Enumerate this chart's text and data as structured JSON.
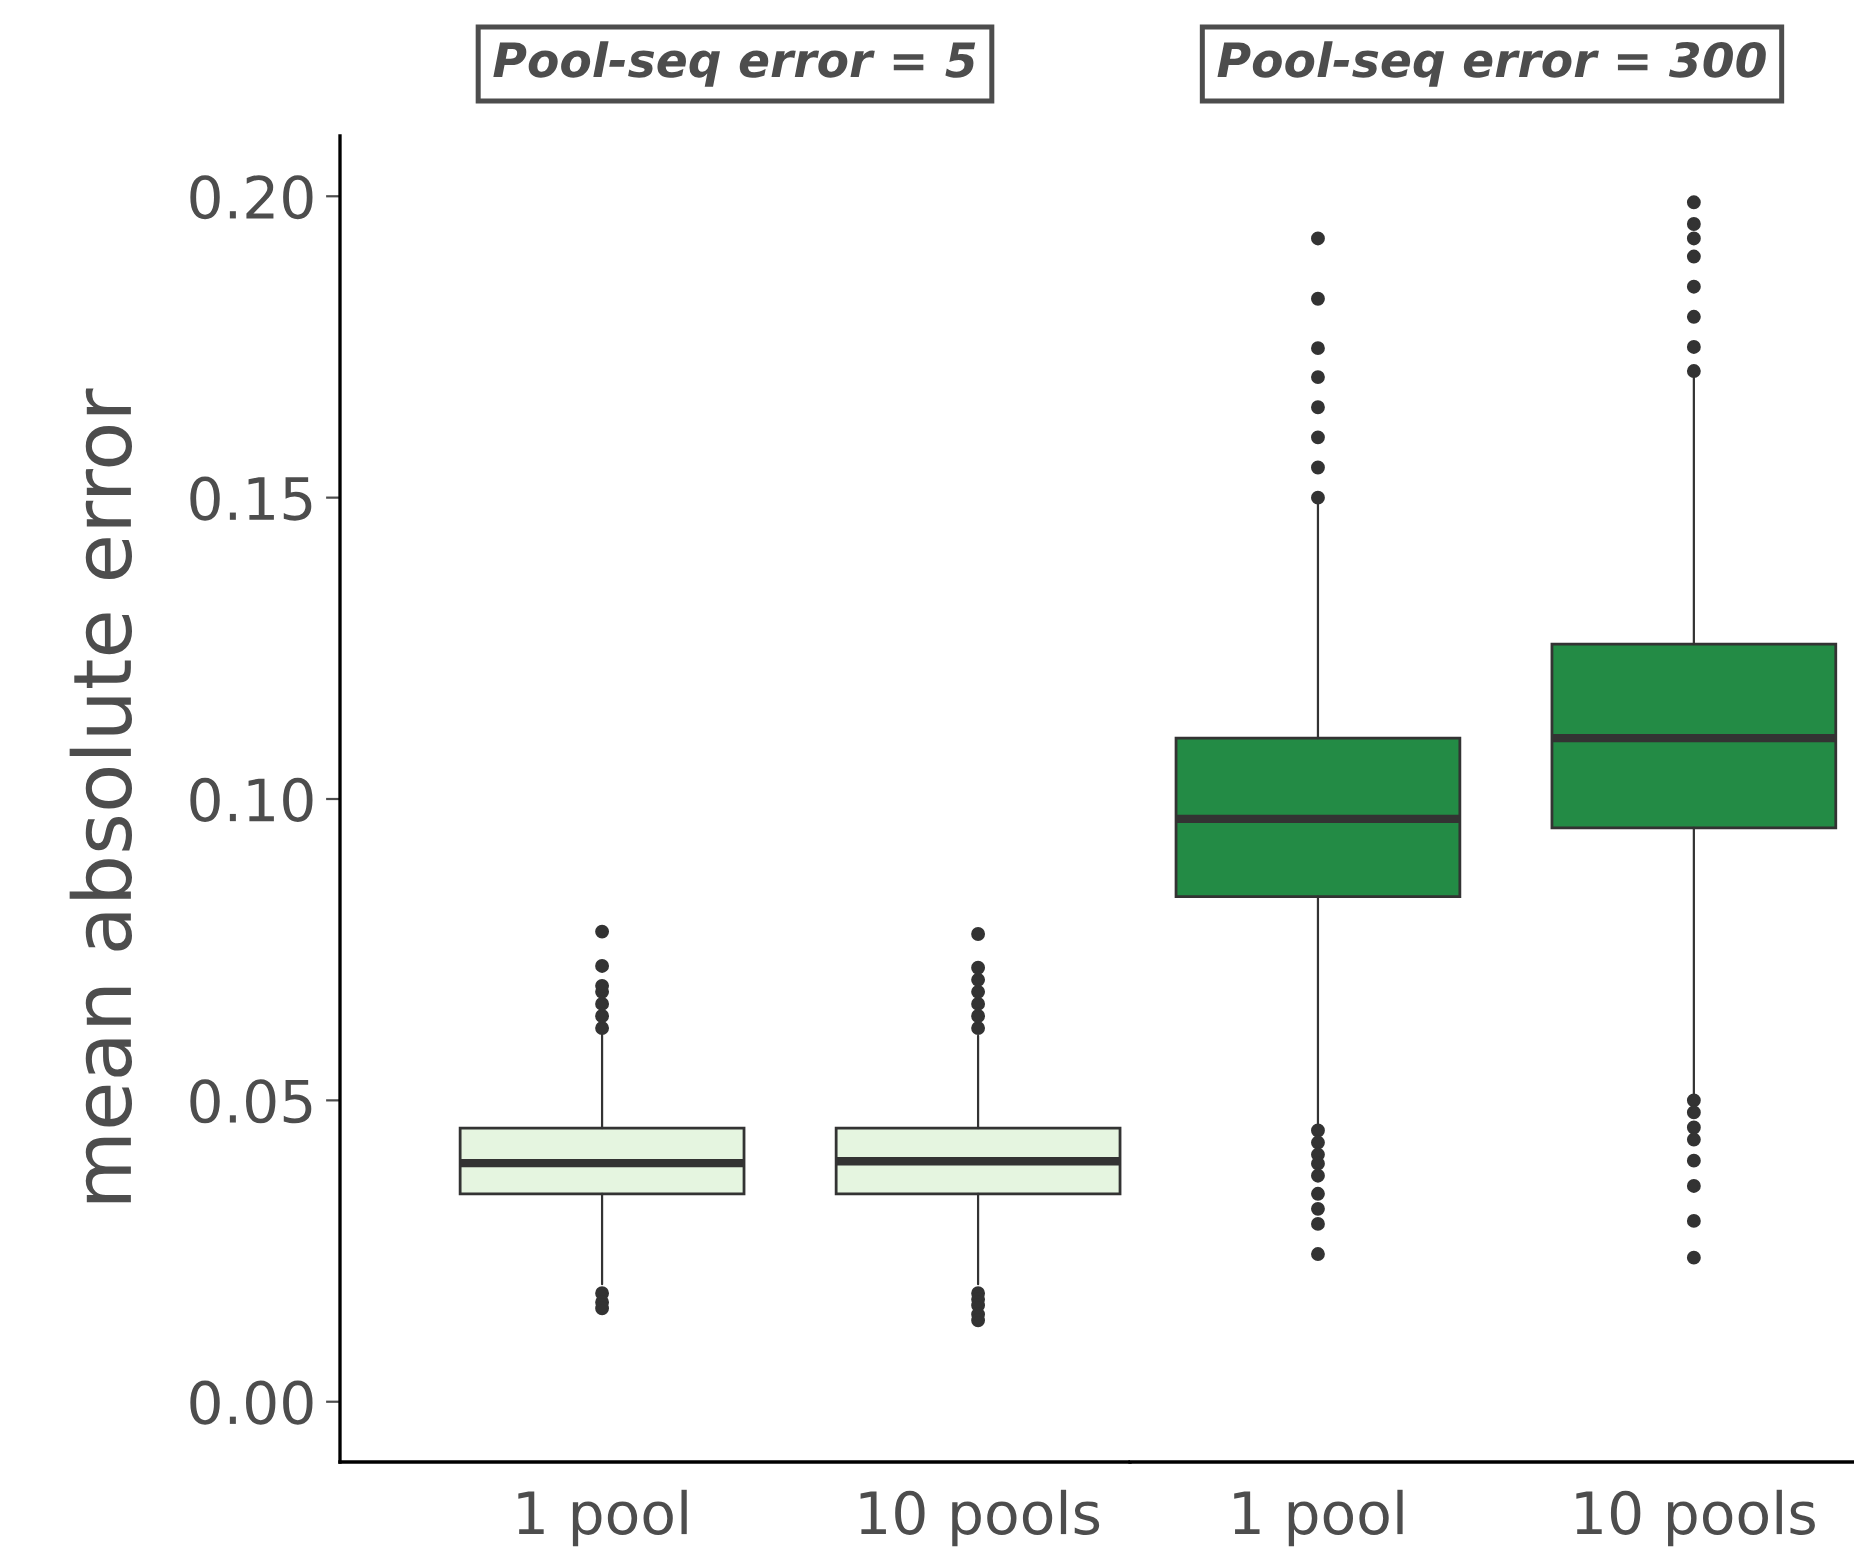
{
  "chart_data": [
    {
      "type": "box",
      "title": "Pool-seq error = 5",
      "ylabel": "mean absolute error",
      "categories": [
        "1 pool",
        "10 pools"
      ],
      "colors": [
        "#e5f5e0",
        "#e5f5e0"
      ],
      "ylim": [
        -0.01,
        0.21
      ],
      "yticks": [
        {
          "value": 0,
          "label": "0.00"
        },
        {
          "value": 0.05,
          "label": "0.05"
        },
        {
          "value": 0.1,
          "label": "0.10"
        },
        {
          "value": 0.15,
          "label": "0.15"
        },
        {
          "value": 0.2,
          "label": "0.20"
        }
      ],
      "boxes": [
        {
          "low": 0.0195,
          "q1": 0.0345,
          "median": 0.0396,
          "q3": 0.0454,
          "high": 0.061,
          "outliers": [
            0.018,
            0.0165,
            0.0155,
            0.062,
            0.064,
            0.066,
            0.068,
            0.069,
            0.0723,
            0.078
          ]
        },
        {
          "low": 0.0195,
          "q1": 0.0345,
          "median": 0.0399,
          "q3": 0.0454,
          "high": 0.0607,
          "outliers": [
            0.018,
            0.017,
            0.016,
            0.0145,
            0.0135,
            0.062,
            0.064,
            0.066,
            0.068,
            0.07,
            0.072,
            0.0776
          ]
        }
      ]
    },
    {
      "type": "box",
      "title": "Pool-seq error = 300",
      "categories": [
        "1 pool",
        "10 pools"
      ],
      "colors": [
        "#238b45",
        "#238b45"
      ],
      "ylim": [
        -0.01,
        0.21
      ],
      "tick_labels": "x",
      "boxes": [
        {
          "low": 0.0455,
          "q1": 0.0838,
          "median": 0.0967,
          "q3": 0.1101,
          "high": 0.149,
          "outliers": [
            0.045,
            0.043,
            0.041,
            0.0395,
            0.0375,
            0.0345,
            0.032,
            0.0295,
            0.0245,
            0.15,
            0.155,
            0.16,
            0.165,
            0.17,
            0.1748,
            0.183,
            0.193
          ]
        },
        {
          "low": 0.0505,
          "q1": 0.0952,
          "median": 0.1101,
          "q3": 0.1257,
          "high": 0.17,
          "outliers": [
            0.05,
            0.048,
            0.0455,
            0.0435,
            0.04,
            0.0358,
            0.03,
            0.0239,
            0.171,
            0.175,
            0.18,
            0.185,
            0.19,
            0.193,
            0.1954,
            0.199
          ]
        }
      ]
    }
  ]
}
